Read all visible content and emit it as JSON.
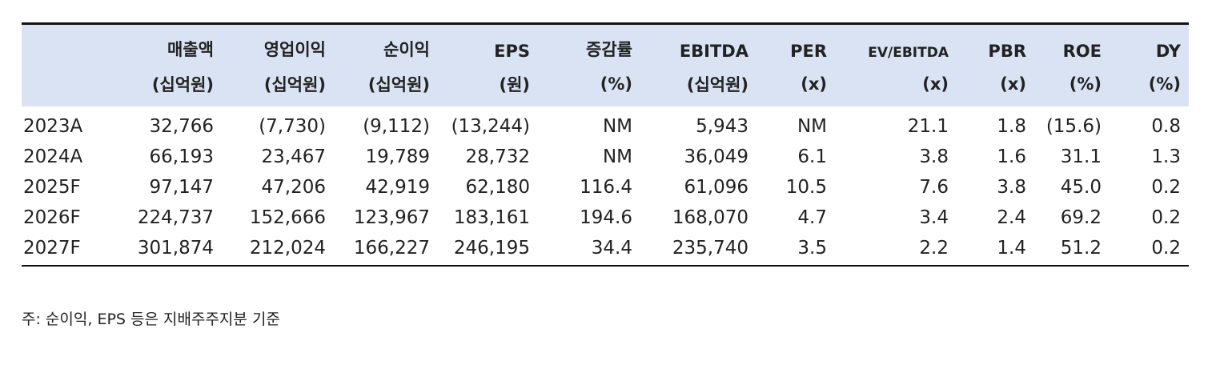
{
  "table": {
    "columns": [
      {
        "label": "매출액",
        "unit": "(십억원)"
      },
      {
        "label": "영업이익",
        "unit": "(십억원)"
      },
      {
        "label": "순이익",
        "unit": "(십억원)"
      },
      {
        "label": "EPS",
        "unit": "(원)"
      },
      {
        "label": "증감률",
        "unit": "(%)"
      },
      {
        "label": "EBITDA",
        "unit": "(십억원)"
      },
      {
        "label": "PER",
        "unit": "(x)"
      },
      {
        "label": "EV/EBITDA",
        "unit": "(x)"
      },
      {
        "label": "PBR",
        "unit": "(x)"
      },
      {
        "label": "ROE",
        "unit": "(%)"
      },
      {
        "label": "DY",
        "unit": "(%)"
      }
    ],
    "rows": [
      {
        "year": "2023A",
        "cells": [
          "32,766",
          "(7,730)",
          "(9,112)",
          "(13,244)",
          "NM",
          "5,943",
          "NM",
          "21.1",
          "1.8",
          "(15.6)",
          "0.8"
        ]
      },
      {
        "year": "2024A",
        "cells": [
          "66,193",
          "23,467",
          "19,789",
          "28,732",
          "NM",
          "36,049",
          "6.1",
          "3.8",
          "1.6",
          "31.1",
          "1.3"
        ]
      },
      {
        "year": "2025F",
        "cells": [
          "97,147",
          "47,206",
          "42,919",
          "62,180",
          "116.4",
          "61,096",
          "10.5",
          "7.6",
          "3.8",
          "45.0",
          "0.2"
        ]
      },
      {
        "year": "2026F",
        "cells": [
          "224,737",
          "152,666",
          "123,967",
          "183,161",
          "194.6",
          "168,070",
          "4.7",
          "3.4",
          "2.4",
          "69.2",
          "0.2"
        ]
      },
      {
        "year": "2027F",
        "cells": [
          "301,874",
          "212,024",
          "166,227",
          "246,195",
          "34.4",
          "235,740",
          "3.5",
          "2.2",
          "1.4",
          "51.2",
          "0.2"
        ]
      }
    ]
  },
  "note": "주: 순이익, EPS 등은 지배주주지분 기준"
}
